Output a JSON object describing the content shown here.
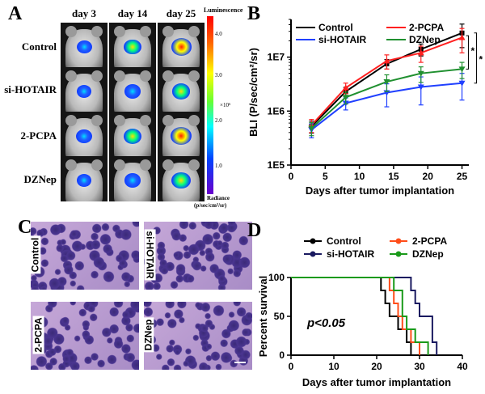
{
  "panels": {
    "a": {
      "letter": "A",
      "columns": [
        "day 3",
        "day 14",
        "day 25"
      ],
      "rows": [
        "Control",
        "si-HOTAIR",
        "2-PCPA",
        "DZNep"
      ],
      "colorbar": {
        "title": "Luminescence",
        "ticks": [
          "4.0",
          "3.0",
          "2.0",
          "1.0"
        ],
        "multiplier": "×10⁶",
        "footer_line1": "Radiance",
        "footer_line2": "(p/sec/cm²/sr)"
      },
      "signal_level": [
        [
          0.25,
          0.45,
          0.75
        ],
        [
          0.2,
          0.35,
          0.55
        ],
        [
          0.3,
          0.5,
          0.8
        ],
        [
          0.2,
          0.4,
          0.6
        ]
      ]
    },
    "b": {
      "letter": "B"
    },
    "c": {
      "letter": "C",
      "labels": [
        "Control",
        "si-HOTAIR",
        "2-PCPA",
        "DZNep"
      ]
    },
    "d": {
      "letter": "D"
    }
  },
  "chart_data": [
    {
      "type": "line",
      "title": "",
      "xlabel": "Days after tumor implantation",
      "ylabel": "BLI (P/sec/cm²/sr)",
      "y_scale": "log",
      "ylim": [
        100000,
        50000000
      ],
      "xlim": [
        0,
        26
      ],
      "x_ticks": [
        0,
        5,
        10,
        15,
        20,
        25
      ],
      "y_ticks": [
        100000,
        1000000,
        10000000
      ],
      "y_tick_labels": [
        "1E5",
        "1E6",
        "1E7"
      ],
      "legend_position": "top-left",
      "series": [
        {
          "name": "Control",
          "color": "#000000",
          "x": [
            3,
            8,
            14,
            19,
            25
          ],
          "y": [
            520000,
            2300000,
            7500000,
            14000000,
            28000000
          ],
          "err": [
            130000,
            450000,
            1500000,
            3500000,
            13000000
          ]
        },
        {
          "name": "2-PCPA",
          "color": "#ff2020",
          "x": [
            3,
            8,
            14,
            19,
            25
          ],
          "y": [
            550000,
            2700000,
            8500000,
            12000000,
            23000000
          ],
          "err": [
            150000,
            600000,
            2500000,
            4000000,
            11000000
          ]
        },
        {
          "name": "si-HOTAIR",
          "color": "#2040ff",
          "x": [
            3,
            8,
            14,
            19,
            25
          ],
          "y": [
            450000,
            1400000,
            2200000,
            2800000,
            3300000
          ],
          "err": [
            130000,
            350000,
            1000000,
            1500000,
            1700000
          ]
        },
        {
          "name": "DZNep",
          "color": "#209030",
          "x": [
            3,
            8,
            14,
            19,
            25
          ],
          "y": [
            480000,
            1800000,
            3500000,
            5000000,
            6000000
          ],
          "err": [
            130000,
            450000,
            1200000,
            1600000,
            2000000
          ]
        }
      ],
      "annotations": [
        "*",
        "*"
      ]
    },
    {
      "type": "line",
      "title": "",
      "xlabel": "Days after tumor implantation",
      "ylabel": "Percent survival",
      "xlim": [
        0,
        40
      ],
      "ylim": [
        0,
        100
      ],
      "x_ticks": [
        0,
        10,
        20,
        30,
        40
      ],
      "y_ticks": [
        0,
        50,
        100
      ],
      "legend_position": "top",
      "annotation": "p<0.05",
      "series": [
        {
          "name": "Control",
          "color": "#000000",
          "steps": [
            [
              0,
              100
            ],
            [
              21,
              100
            ],
            [
              21,
              83.3
            ],
            [
              22,
              83.3
            ],
            [
              22,
              66.7
            ],
            [
              23,
              66.7
            ],
            [
              23,
              50
            ],
            [
              25,
              50
            ],
            [
              25,
              33.3
            ],
            [
              27,
              33.3
            ],
            [
              27,
              16.7
            ],
            [
              28,
              16.7
            ],
            [
              28,
              0
            ]
          ]
        },
        {
          "name": "2-PCPA",
          "color": "#ff4d1a",
          "steps": [
            [
              0,
              100
            ],
            [
              23,
              100
            ],
            [
              23,
              83.3
            ],
            [
              24,
              83.3
            ],
            [
              24,
              66.7
            ],
            [
              25,
              66.7
            ],
            [
              25,
              50
            ],
            [
              26,
              50
            ],
            [
              26,
              33.3
            ],
            [
              28,
              33.3
            ],
            [
              28,
              16.7
            ],
            [
              30,
              16.7
            ],
            [
              30,
              0
            ]
          ]
        },
        {
          "name": "si-HOTAIR",
          "color": "#1a1a60",
          "steps": [
            [
              0,
              100
            ],
            [
              28,
              100
            ],
            [
              28,
              83.3
            ],
            [
              29,
              83.3
            ],
            [
              29,
              66.7
            ],
            [
              30,
              66.7
            ],
            [
              30,
              50
            ],
            [
              33,
              50
            ],
            [
              33,
              16.7
            ],
            [
              34,
              16.7
            ],
            [
              34,
              0
            ]
          ]
        },
        {
          "name": "DZNep",
          "color": "#1a9a1a",
          "steps": [
            [
              0,
              100
            ],
            [
              24,
              100
            ],
            [
              24,
              83.3
            ],
            [
              26,
              83.3
            ],
            [
              26,
              50
            ],
            [
              27,
              50
            ],
            [
              27,
              33.3
            ],
            [
              29,
              33.3
            ],
            [
              29,
              16.7
            ],
            [
              32,
              16.7
            ],
            [
              32,
              0
            ]
          ]
        }
      ]
    }
  ]
}
